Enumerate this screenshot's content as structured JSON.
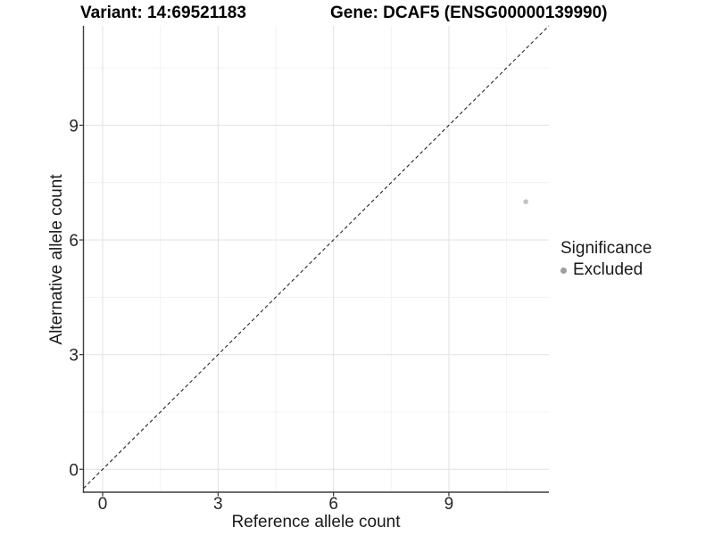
{
  "chart_data": {
    "type": "scatter",
    "titles": {
      "variant": "Variant: 14:69521183",
      "gene": "Gene: DCAF5 (ENSG00000139990)"
    },
    "xlabel": "Reference allele count",
    "ylabel": "Alternative allele count",
    "x_ticks": [
      0,
      3,
      6,
      9
    ],
    "y_ticks": [
      0,
      3,
      6,
      9
    ],
    "x_minor_ticks": [
      1.5,
      4.5,
      7.5,
      10.5
    ],
    "y_minor_ticks": [
      1.5,
      4.5,
      7.5,
      10.5
    ],
    "xlim": [
      -0.5,
      11.6
    ],
    "ylim": [
      -0.6,
      11.6
    ],
    "grid": true,
    "identity_line": {
      "slope": 1,
      "intercept": 0,
      "style": "dashed",
      "color": "#111111"
    },
    "points": [
      {
        "x": 11,
        "y": 7,
        "series": "Excluded"
      }
    ],
    "legend": {
      "title": "Significance",
      "position": "right",
      "items": [
        {
          "label": "Excluded",
          "color": "#9e9e9e"
        }
      ]
    },
    "colors": {
      "point": "#c2c2c2",
      "grid_major": "#e4e4e4",
      "grid_minor": "#f1f1f1",
      "axis_line": "#3c3c3c",
      "tick_mark": "#333333",
      "tick_text": "#262626"
    }
  }
}
